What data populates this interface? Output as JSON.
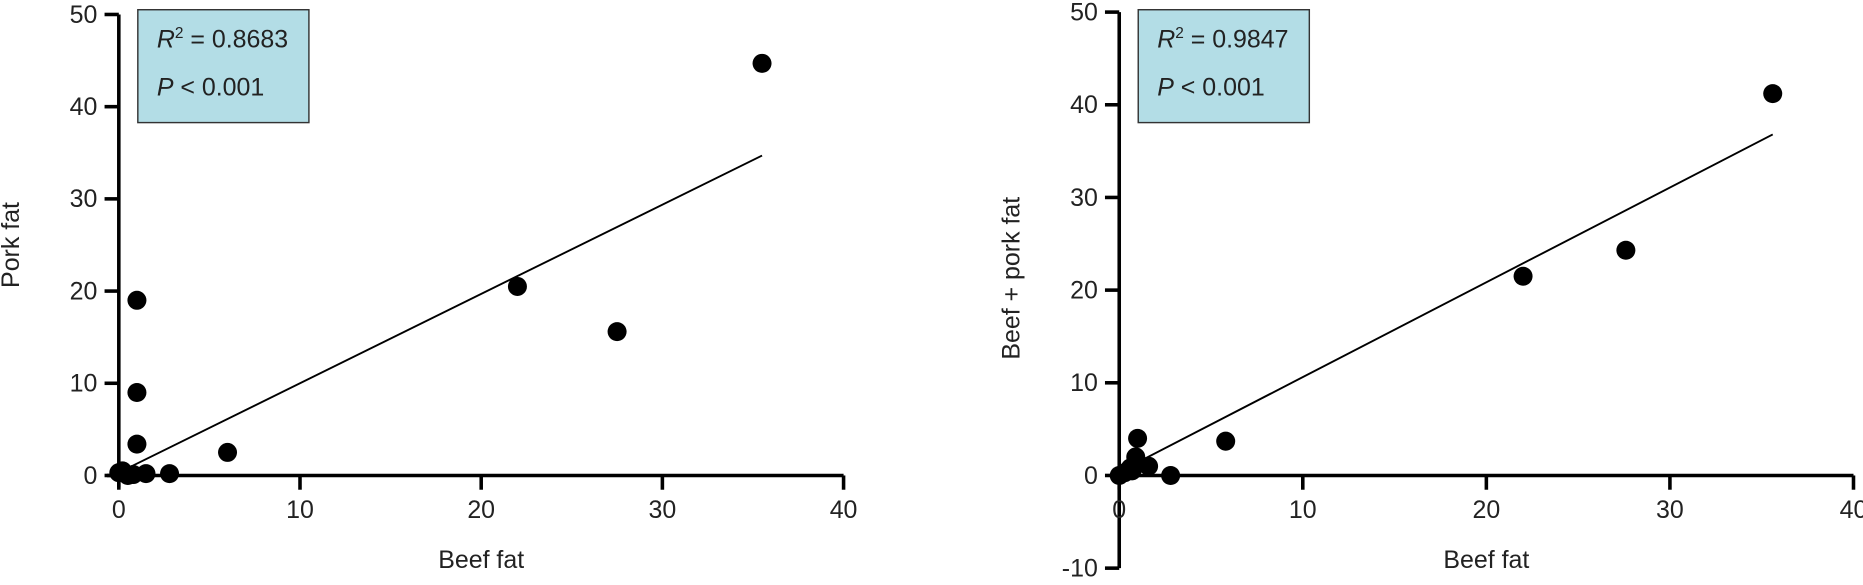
{
  "chart_data": [
    {
      "type": "scatter",
      "xlabel": "Beef fat",
      "ylabel": "Pork fat",
      "xlim": [
        0,
        40
      ],
      "ylim": [
        0,
        50
      ],
      "xticks": [
        0,
        10,
        20,
        30,
        40
      ],
      "yticks": [
        0,
        10,
        20,
        30,
        40,
        50
      ],
      "grid": false,
      "annotation": {
        "r2_label": "R",
        "r2_sup": "2",
        "r2_value": " = 0.8683",
        "p_label": "P",
        "p_value": " < 0.001",
        "box_color": "#b3dde6"
      },
      "points": [
        [
          0,
          0.3
        ],
        [
          0.2,
          0.5
        ],
        [
          0.5,
          0
        ],
        [
          0.8,
          0.1
        ],
        [
          1.5,
          0.2
        ],
        [
          2.8,
          0.2
        ],
        [
          1,
          19
        ],
        [
          1,
          9
        ],
        [
          1,
          3.4
        ],
        [
          6,
          2.5
        ],
        [
          22,
          20.5
        ],
        [
          27.5,
          15.6
        ],
        [
          35.5,
          44.7
        ]
      ],
      "fit_line": [
        [
          0.6,
          0.9
        ],
        [
          35.5,
          34.7
        ]
      ],
      "marker_color": "#000000"
    },
    {
      "type": "scatter",
      "xlabel": "Beef fat",
      "ylabel": "Beef + pork fat",
      "xlim": [
        0,
        40
      ],
      "ylim": [
        -10,
        50
      ],
      "xticks": [
        0,
        10,
        20,
        30,
        40
      ],
      "yticks": [
        -10,
        0,
        10,
        20,
        30,
        40,
        50
      ],
      "grid": false,
      "annotation": {
        "r2_label": "R",
        "r2_sup": "2",
        "r2_value": " = 0.9847",
        "p_label": "P",
        "p_value": " < 0.001",
        "box_color": "#b3dde6"
      },
      "points": [
        [
          0,
          0
        ],
        [
          0.3,
          0.3
        ],
        [
          0.7,
          0.5
        ],
        [
          0.6,
          0.8
        ],
        [
          0.9,
          2
        ],
        [
          1,
          4
        ],
        [
          1.6,
          1
        ],
        [
          2.8,
          0
        ],
        [
          5.8,
          3.7
        ],
        [
          22,
          21.5
        ],
        [
          27.6,
          24.3
        ],
        [
          35.6,
          41.2
        ]
      ],
      "fit_line": [
        [
          0.5,
          0.9
        ],
        [
          35.6,
          36.8
        ]
      ],
      "marker_color": "#000000"
    }
  ]
}
